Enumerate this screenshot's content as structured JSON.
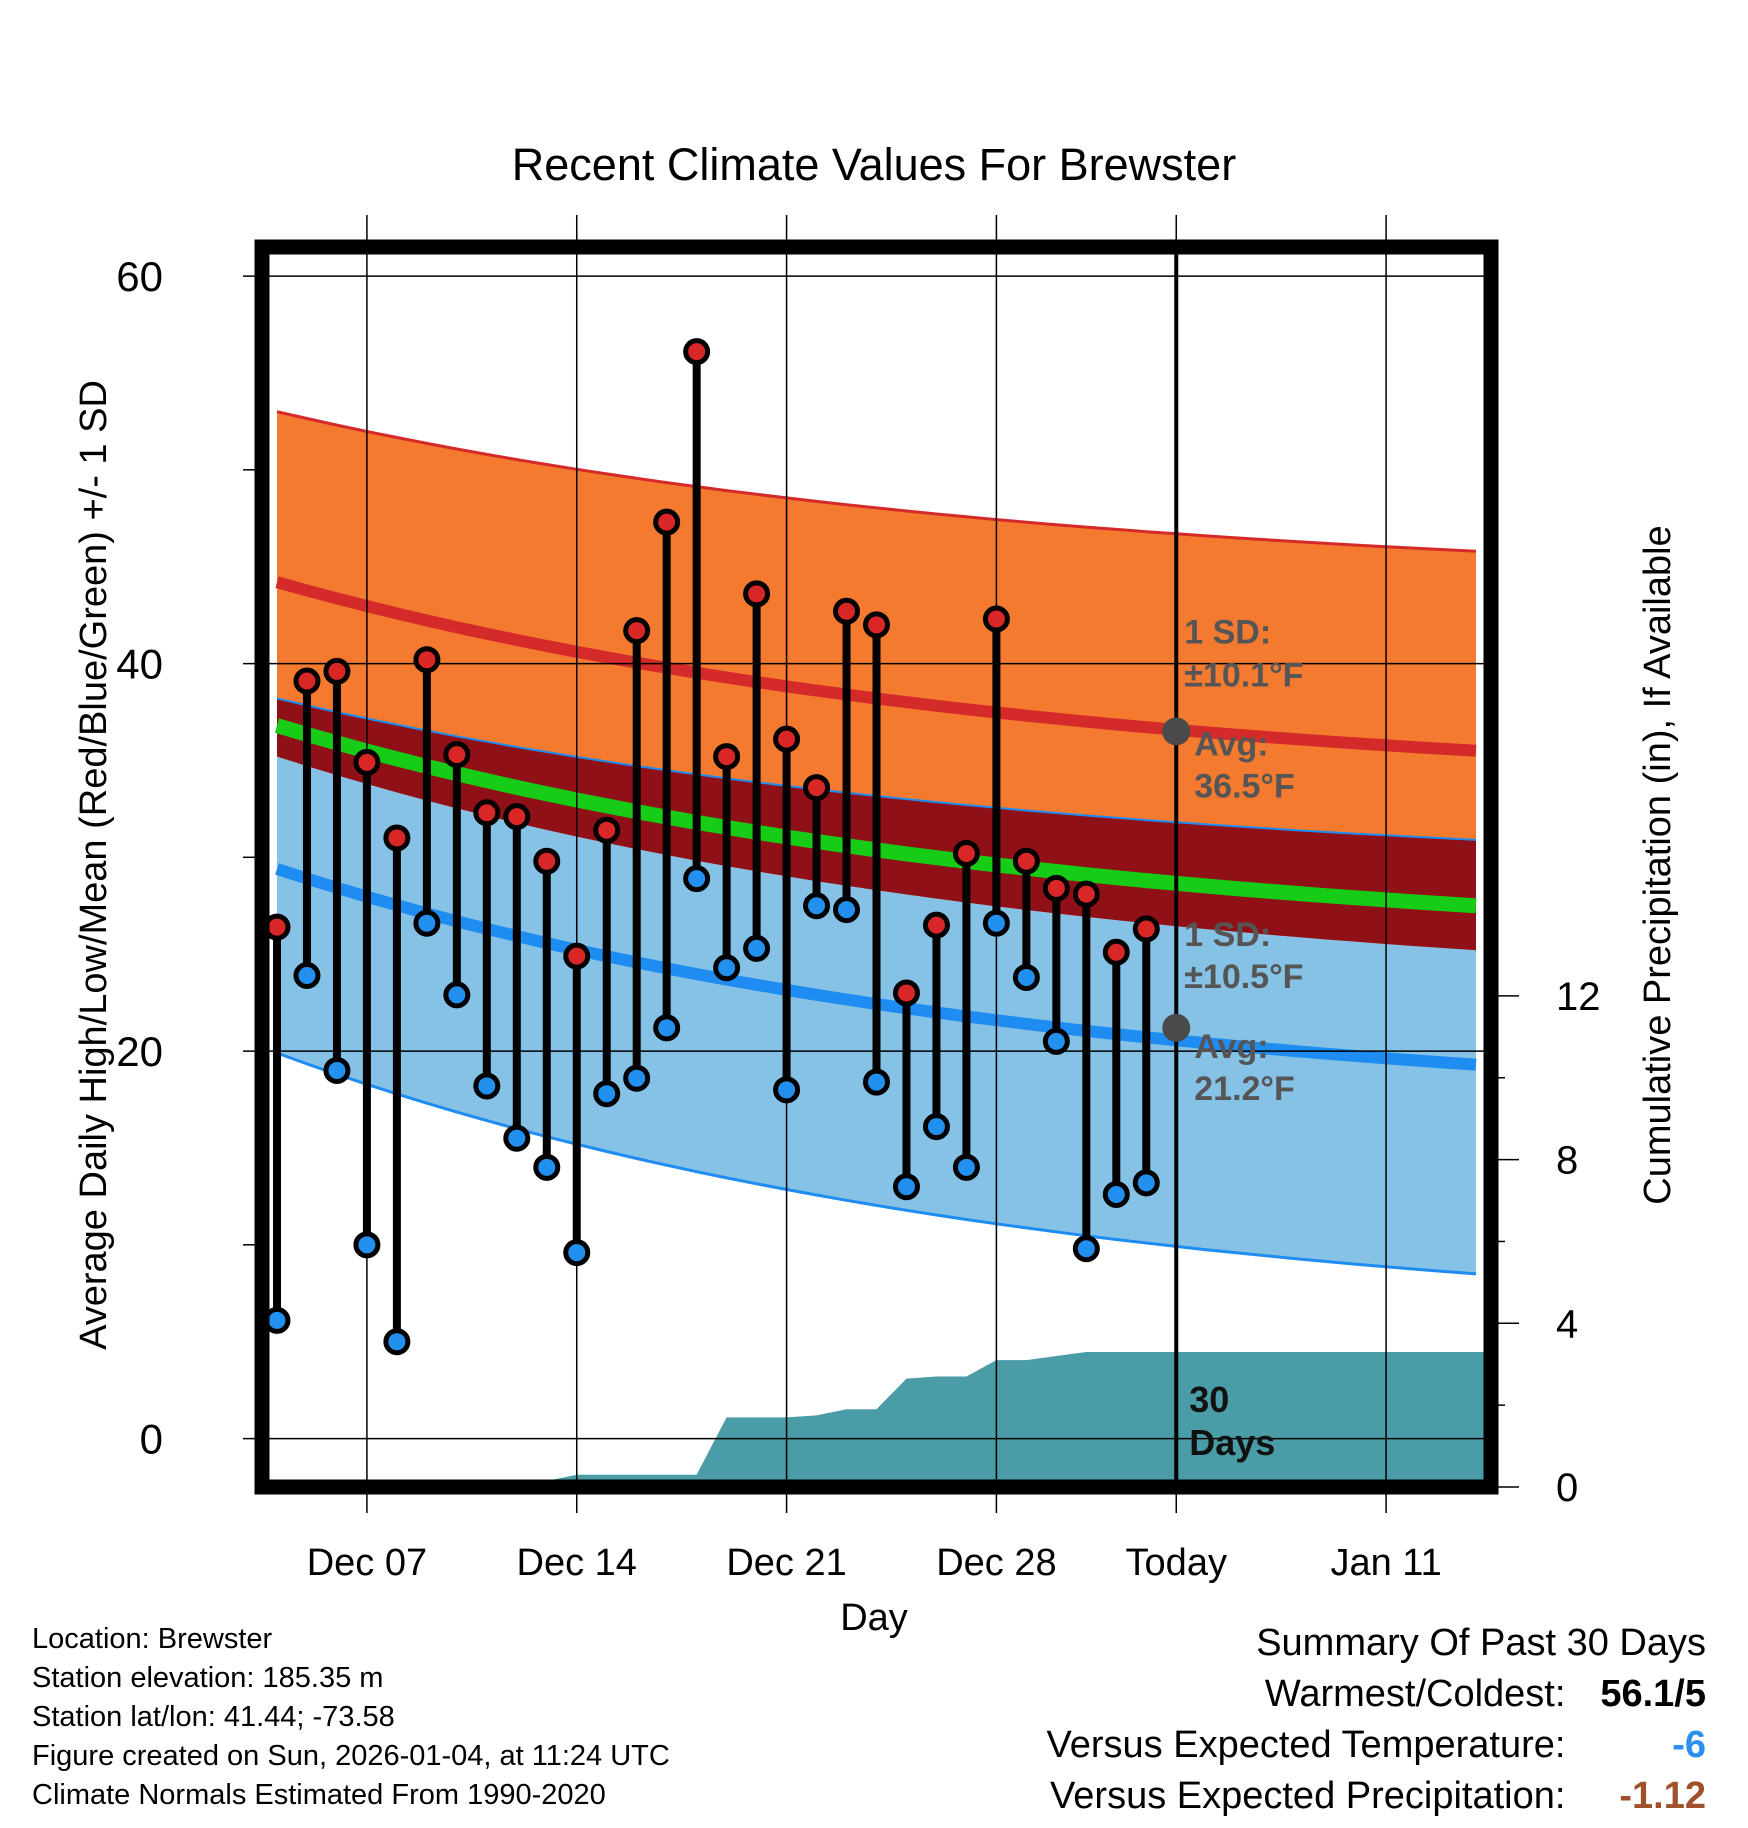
{
  "chart_data": {
    "type": "line",
    "title": "Recent Climate Values For Brewster",
    "xlabel": "Day",
    "ylabel": "Average Daily High/Low/Mean (Red/Blue/Green) +/- 1 SD",
    "y2label": "Cumulative Precipitation (in), If Available",
    "x_range_days": [
      -30.5,
      10.5
    ],
    "x_ticks": [
      {
        "day": -27,
        "label": "Dec 07"
      },
      {
        "day": -20,
        "label": "Dec 14"
      },
      {
        "day": -13,
        "label": "Dec 21"
      },
      {
        "day": -6,
        "label": "Dec 28"
      },
      {
        "day": 0,
        "label": "Today"
      },
      {
        "day": 7,
        "label": "Jan 11"
      }
    ],
    "ylim": [
      -2.5,
      61.5
    ],
    "y_ticks": [
      0,
      20,
      40,
      60
    ],
    "y2lim": [
      0,
      30.3
    ],
    "y2_ticks": [
      0,
      4,
      8,
      12
    ],
    "normals": {
      "avg_high": {
        "start": 44.2,
        "end": 35.5
      },
      "high_upper_sd": {
        "start": 53.0,
        "end": 45.8
      },
      "avg_low": {
        "start": 29.4,
        "end": 19.3
      },
      "low_lower_sd": {
        "start": 19.9,
        "end": 8.5
      },
      "mean": {
        "start": 36.8,
        "end": 27.5
      },
      "mean_upper": {
        "start": 38.2,
        "end": 30.9
      },
      "mean_lower": {
        "start": 35.2,
        "end": 25.2
      }
    },
    "daily": {
      "days": [
        -30,
        -29,
        -28,
        -27,
        -26,
        -25,
        -24,
        -23,
        -22,
        -21,
        -20,
        -19,
        -18,
        -17,
        -16,
        -15,
        -14,
        -13,
        -12,
        -11,
        -10,
        -9,
        -8,
        -7,
        -6,
        -5,
        -4,
        -3,
        -2,
        -1
      ],
      "high": [
        26.4,
        39.1,
        39.6,
        34.9,
        31.0,
        40.2,
        35.3,
        32.3,
        32.1,
        29.8,
        24.9,
        31.4,
        41.7,
        47.3,
        56.1,
        35.2,
        43.6,
        36.1,
        33.6,
        42.7,
        42.0,
        23.0,
        26.5,
        30.2,
        42.3,
        29.8,
        28.4,
        28.1,
        25.1,
        26.3
      ],
      "low": [
        6.1,
        23.9,
        19.0,
        10.0,
        5.0,
        26.6,
        22.9,
        18.2,
        15.5,
        14.0,
        9.6,
        17.8,
        18.6,
        21.2,
        28.9,
        24.3,
        25.3,
        18.0,
        27.5,
        27.3,
        18.4,
        13.0,
        16.1,
        14.0,
        26.6,
        23.8,
        20.5,
        9.8,
        12.6,
        13.2
      ]
    },
    "precip": {
      "days": [
        -30,
        -25,
        -24,
        -21,
        -20,
        -19,
        -16,
        -15,
        -13,
        -12,
        -11,
        -10,
        -9,
        -8,
        -7,
        -6,
        -5,
        -4,
        -3,
        -2,
        -1,
        0,
        10.5
      ],
      "values": [
        0,
        0,
        0.1,
        0.15,
        0.3,
        0.3,
        0.3,
        1.7,
        1.7,
        1.75,
        1.9,
        1.9,
        2.65,
        2.7,
        2.7,
        3.1,
        3.1,
        3.2,
        3.3,
        3.3,
        3.3,
        3.3,
        3.3
      ]
    },
    "annotations": {
      "high_sd": "1 SD:",
      "high_sd_val": "±10.1°F",
      "high_avg": "Avg:",
      "high_avg_val": "36.5°F",
      "high_avg_value": 36.5,
      "low_sd": "1 SD:",
      "low_sd_val": "±10.5°F",
      "low_avg": "Avg:",
      "low_avg_val": "21.2°F",
      "low_avg_value": 21.2,
      "window_count": "30",
      "window_unit": "Days"
    },
    "colors": {
      "high_band": "#f47a30",
      "high_line": "#d42a2a",
      "low_band": "#86c2e6",
      "low_line": "#1e8cf0",
      "mean_band": "#8f1016",
      "mean_line": "#16cc16",
      "precip": "#4a9ca6",
      "high_marker": "#d92626",
      "low_marker": "#2190ee",
      "annotation": "#555555",
      "temp_anomaly": "#2a8ff0",
      "precip_anomaly": "#a0502a"
    }
  },
  "footer": {
    "location": "Location: Brewster",
    "elevation": "Station elevation: 185.35 m",
    "latlon": "Station lat/lon: 41.44; -73.58",
    "created": "Figure created on Sun, 2026-01-04, at 11:24 UTC",
    "normals": "Climate Normals Estimated From 1990-2020"
  },
  "summary": {
    "title": "Summary Of Past 30 Days",
    "warmest_label": "Warmest/Coldest:",
    "warmest_value": "56.1/5",
    "temp_label": "Versus Expected Temperature:",
    "temp_value": "-6",
    "precip_label": "Versus Expected Precipitation:",
    "precip_value": "-1.12"
  }
}
